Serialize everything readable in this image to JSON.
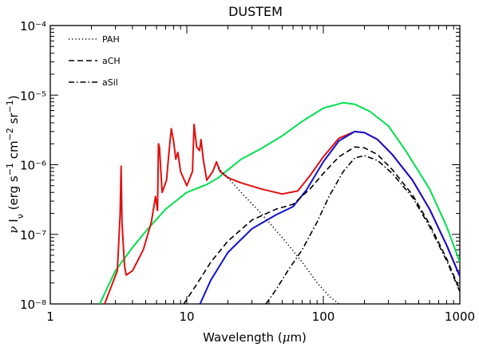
{
  "chart_data": {
    "type": "line",
    "title": "DUSTEM",
    "xlabel": "Wavelength (μm)",
    "ylabel": "ν Iν (erg s⁻¹ cm⁻² sr⁻¹)",
    "xscale": "log",
    "yscale": "log",
    "xlim": [
      1,
      1000
    ],
    "ylim": [
      1e-08,
      0.0001
    ],
    "x_ticklabels": [
      "1",
      "10",
      "100",
      "1000"
    ],
    "y_ticklabels": [
      "10⁻⁸",
      "10⁻⁷",
      "10⁻⁶",
      "10⁻⁵",
      "10⁻⁴"
    ],
    "legend_position": "top-left",
    "legend": [
      {
        "name": "PAH",
        "style": "dotted",
        "color": "#000000"
      },
      {
        "name": "aCH",
        "style": "dashed",
        "color": "#000000"
      },
      {
        "name": "aSil",
        "style": "dashdot",
        "color": "#000000"
      }
    ],
    "series": [
      {
        "style": "solid",
        "color": "#00e050",
        "points": [
          [
            2.3,
            1e-08
          ],
          [
            3,
            3e-08
          ],
          [
            4,
            6.5e-08
          ],
          [
            5,
            1.1e-07
          ],
          [
            7,
            2.3e-07
          ],
          [
            10,
            4e-07
          ],
          [
            14,
            5.2e-07
          ],
          [
            17,
            6.5e-07
          ],
          [
            25,
            1.2e-06
          ],
          [
            35,
            1.7e-06
          ],
          [
            50,
            2.6e-06
          ],
          [
            70,
            4.2e-06
          ],
          [
            100,
            6.5e-06
          ],
          [
            140,
            7.8e-06
          ],
          [
            170,
            7.4e-06
          ],
          [
            220,
            5.8e-06
          ],
          [
            300,
            3.6e-06
          ],
          [
            400,
            1.6e-06
          ],
          [
            600,
            4.5e-07
          ],
          [
            800,
            1.3e-07
          ],
          [
            1000,
            4e-08
          ]
        ]
      },
      {
        "style": "solid",
        "color": "#e01010",
        "points": [
          [
            2.5,
            1e-08
          ],
          [
            3.1,
            3e-08
          ],
          [
            3.25,
            2e-07
          ],
          [
            3.3,
            9.5e-07
          ],
          [
            3.35,
            1.5e-07
          ],
          [
            3.5,
            3.5e-08
          ],
          [
            3.6,
            2.6e-08
          ],
          [
            4,
            3e-08
          ],
          [
            4.8,
            6e-08
          ],
          [
            5.5,
            1.5e-07
          ],
          [
            5.9,
            3.5e-07
          ],
          [
            6.1,
            2.2e-07
          ],
          [
            6.2,
            2e-06
          ],
          [
            6.3,
            1.8e-06
          ],
          [
            6.6,
            4e-07
          ],
          [
            7.1,
            6e-07
          ],
          [
            7.4,
            1.5e-06
          ],
          [
            7.7,
            3.3e-06
          ],
          [
            8.0,
            2.2e-06
          ],
          [
            8.3,
            1.2e-06
          ],
          [
            8.6,
            1.5e-06
          ],
          [
            9.0,
            8e-07
          ],
          [
            10,
            5e-07
          ],
          [
            11,
            8e-07
          ],
          [
            11.3,
            3.8e-06
          ],
          [
            11.8,
            1.8e-06
          ],
          [
            12.4,
            1.6e-06
          ],
          [
            12.7,
            2.3e-06
          ],
          [
            13.2,
            1.2e-06
          ],
          [
            14,
            6e-07
          ],
          [
            15.5,
            8e-07
          ],
          [
            16.5,
            1.1e-06
          ],
          [
            17.5,
            8e-07
          ],
          [
            20,
            6.5e-07
          ],
          [
            25,
            5.5e-07
          ],
          [
            35,
            4.5e-07
          ],
          [
            50,
            3.8e-07
          ],
          [
            65,
            4.2e-07
          ],
          [
            80,
            7e-07
          ],
          [
            100,
            1.3e-06
          ],
          [
            130,
            2.4e-06
          ],
          [
            170,
            3e-06
          ],
          [
            200,
            2.9e-06
          ],
          [
            250,
            2.3e-06
          ],
          [
            320,
            1.4e-06
          ],
          [
            450,
            6e-07
          ],
          [
            600,
            2.3e-07
          ],
          [
            800,
            7e-08
          ],
          [
            1000,
            2.5e-08
          ]
        ]
      },
      {
        "style": "solid",
        "color": "#1010d0",
        "points": [
          [
            12.5,
            1e-08
          ],
          [
            15,
            2.2e-08
          ],
          [
            20,
            5.5e-08
          ],
          [
            30,
            1.2e-07
          ],
          [
            45,
            1.9e-07
          ],
          [
            60,
            2.5e-07
          ],
          [
            75,
            4.3e-07
          ],
          [
            100,
            1.1e-06
          ],
          [
            130,
            2.2e-06
          ],
          [
            170,
            3e-06
          ],
          [
            200,
            2.9e-06
          ],
          [
            250,
            2.3e-06
          ],
          [
            320,
            1.4e-06
          ],
          [
            450,
            6e-07
          ],
          [
            600,
            2.3e-07
          ],
          [
            800,
            7e-08
          ],
          [
            1000,
            2.5e-08
          ]
        ]
      },
      {
        "style": "dotted",
        "color": "#000000",
        "points": [
          [
            17,
            9e-07
          ],
          [
            20,
            6.5e-07
          ],
          [
            25,
            4e-07
          ],
          [
            35,
            2e-07
          ],
          [
            50,
            9e-08
          ],
          [
            70,
            4e-08
          ],
          [
            90,
            2e-08
          ],
          [
            110,
            1.3e-08
          ],
          [
            130,
            1e-08
          ]
        ]
      },
      {
        "style": "dashed",
        "color": "#000000",
        "points": [
          [
            9.5,
            1e-08
          ],
          [
            12,
            2e-08
          ],
          [
            15,
            4e-08
          ],
          [
            20,
            8e-08
          ],
          [
            30,
            1.6e-07
          ],
          [
            45,
            2.3e-07
          ],
          [
            60,
            2.7e-07
          ],
          [
            80,
            4.5e-07
          ],
          [
            100,
            7.5e-07
          ],
          [
            130,
            1.3e-06
          ],
          [
            170,
            1.8e-06
          ],
          [
            200,
            1.75e-06
          ],
          [
            250,
            1.4e-06
          ],
          [
            320,
            8.5e-07
          ],
          [
            450,
            3.7e-07
          ],
          [
            600,
            1.4e-07
          ],
          [
            800,
            4.5e-08
          ],
          [
            1000,
            1.6e-08
          ]
        ]
      },
      {
        "style": "dashdot",
        "color": "#000000",
        "points": [
          [
            38,
            1e-08
          ],
          [
            45,
            1.6e-08
          ],
          [
            55,
            3e-08
          ],
          [
            70,
            6e-08
          ],
          [
            90,
            1.5e-07
          ],
          [
            110,
            3.5e-07
          ],
          [
            140,
            8e-07
          ],
          [
            170,
            1.25e-06
          ],
          [
            200,
            1.35e-06
          ],
          [
            250,
            1.15e-06
          ],
          [
            320,
            7.5e-07
          ],
          [
            450,
            3.4e-07
          ],
          [
            600,
            1.3e-07
          ],
          [
            800,
            4.2e-08
          ],
          [
            1000,
            1.5e-08
          ]
        ]
      }
    ]
  }
}
